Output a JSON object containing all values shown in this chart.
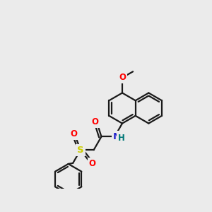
{
  "background_color": "#ebebeb",
  "bond_color": "#1a1a1a",
  "bond_width": 1.6,
  "atom_colors": {
    "O": "#ff0000",
    "N": "#2222cc",
    "S": "#cccc00",
    "H": "#007777",
    "C": "#1a1a1a"
  },
  "font_size": 8.5
}
